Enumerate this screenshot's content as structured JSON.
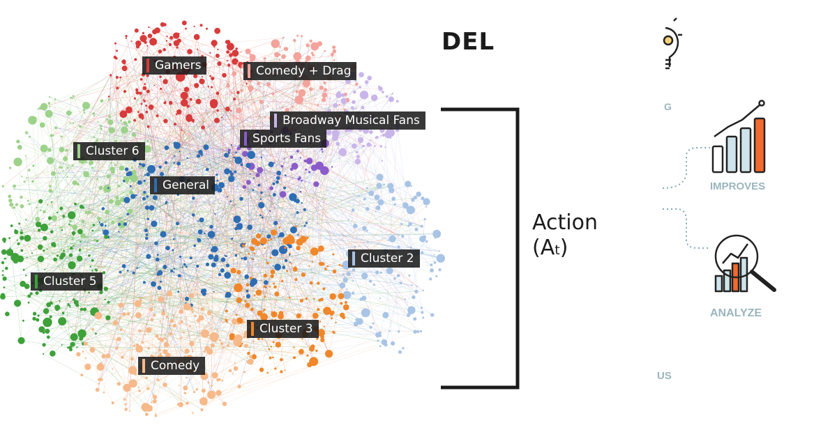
{
  "network": {
    "labels": [
      {
        "id": "gamers",
        "text": "Gamers",
        "color": "#d83b3b"
      },
      {
        "id": "comedy-drag",
        "text": "Comedy + Drag",
        "color": "#f3a39b"
      },
      {
        "id": "broadway",
        "text": "Broadway Musical Fans",
        "color": "#c9b5ea"
      },
      {
        "id": "sports",
        "text": "Sports Fans",
        "color": "#8a5cc9"
      },
      {
        "id": "cluster6",
        "text": "Cluster 6",
        "color": "#9dd28a"
      },
      {
        "id": "general",
        "text": "General",
        "color": "#2f6db3"
      },
      {
        "id": "cluster2",
        "text": "Cluster 2",
        "color": "#a8c4e6"
      },
      {
        "id": "cluster5",
        "text": "Cluster 5",
        "color": "#3ea13a"
      },
      {
        "id": "cluster3",
        "text": "Cluster 3",
        "color": "#f0872a"
      },
      {
        "id": "comedy",
        "text": "Comedy",
        "color": "#f6b98a"
      }
    ]
  },
  "model": {
    "title_fragment": "DEL",
    "action_label": "Action",
    "action_symbol": "(A",
    "action_subscript": "t",
    "action_close": ")"
  },
  "steps": {
    "improves": "IMPROVES",
    "analyze": "ANALYZE",
    "fragment_top": "G",
    "fragment_bottom": "US"
  },
  "colors": {
    "icon_stroke": "#222222",
    "icon_fill": "#cfe3ea",
    "accent": "#f26a2e",
    "step_text": "#9bb4bd",
    "dotted": "#7fa7b3"
  }
}
